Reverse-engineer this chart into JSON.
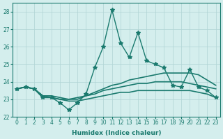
{
  "xlabel": "Humidex (Indice chaleur)",
  "ylabel": "",
  "xlim": [
    -0.5,
    23.5
  ],
  "ylim": [
    22,
    28.5
  ],
  "yticks": [
    22,
    23,
    24,
    25,
    26,
    27,
    28
  ],
  "xticks": [
    0,
    1,
    2,
    3,
    4,
    5,
    6,
    7,
    8,
    9,
    10,
    11,
    12,
    13,
    14,
    15,
    16,
    17,
    18,
    19,
    20,
    21,
    22,
    23
  ],
  "background_color": "#d4eeed",
  "grid_color": "#b0d4d4",
  "line_color": "#1a7a6e",
  "line_series": [
    {
      "x": [
        0,
        1,
        2,
        3,
        4,
        5,
        6,
        7,
        8,
        9,
        10,
        11,
        12,
        13,
        14,
        15,
        16,
        17,
        18,
        19,
        20,
        21,
        22,
        23
      ],
      "y": [
        23.6,
        23.7,
        23.6,
        23.1,
        23.1,
        22.8,
        22.4,
        22.8,
        23.3,
        24.8,
        26.0,
        28.1,
        26.2,
        25.4,
        26.8,
        25.2,
        25.0,
        24.8,
        23.8,
        23.7,
        24.7,
        23.7,
        23.5,
        23.1
      ],
      "marker": "*",
      "linewidth": 1.0
    },
    {
      "x": [
        0,
        1,
        2,
        3,
        4,
        5,
        6,
        7,
        8,
        9,
        10,
        11,
        12,
        13,
        14,
        15,
        16,
        17,
        18,
        19,
        20,
        21,
        22,
        23
      ],
      "y": [
        23.6,
        23.7,
        23.6,
        23.2,
        23.1,
        23.0,
        23.0,
        23.0,
        23.2,
        23.4,
        23.6,
        23.8,
        23.9,
        24.1,
        24.2,
        24.3,
        24.4,
        24.5,
        24.5,
        24.5,
        24.5,
        24.4,
        24.1,
        23.8
      ],
      "marker": null,
      "linewidth": 1.2
    },
    {
      "x": [
        0,
        1,
        2,
        3,
        4,
        5,
        6,
        7,
        8,
        9,
        10,
        11,
        12,
        13,
        14,
        15,
        16,
        17,
        18,
        19,
        20,
        21,
        22,
        23
      ],
      "y": [
        23.6,
        23.7,
        23.6,
        23.2,
        23.2,
        23.1,
        23.0,
        23.1,
        23.2,
        23.3,
        23.5,
        23.6,
        23.7,
        23.8,
        23.9,
        23.9,
        24.0,
        24.0,
        24.0,
        24.0,
        23.9,
        23.8,
        23.7,
        23.6
      ],
      "marker": null,
      "linewidth": 1.2
    },
    {
      "x": [
        0,
        1,
        2,
        3,
        4,
        5,
        6,
        7,
        8,
        9,
        10,
        11,
        12,
        13,
        14,
        15,
        16,
        17,
        18,
        19,
        20,
        21,
        22,
        23
      ],
      "y": [
        23.6,
        23.7,
        23.6,
        23.1,
        23.1,
        23.0,
        22.9,
        22.9,
        23.0,
        23.1,
        23.2,
        23.3,
        23.4,
        23.4,
        23.5,
        23.5,
        23.5,
        23.5,
        23.5,
        23.5,
        23.5,
        23.4,
        23.3,
        23.1
      ],
      "marker": null,
      "linewidth": 1.2
    }
  ]
}
